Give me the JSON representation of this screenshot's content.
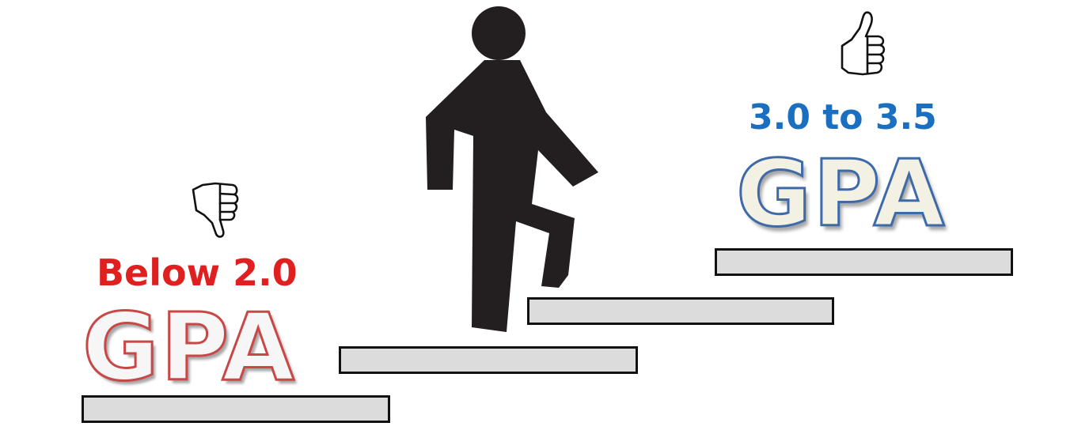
{
  "low": {
    "range_label": "Below 2.0",
    "gpa_label": "GPA",
    "color": "#e02020",
    "icon": "thumbs-down-icon"
  },
  "high": {
    "range_label": "3.0 to 3.5",
    "gpa_label": "GPA",
    "color": "#1a6fc0",
    "icon": "thumbs-up-icon"
  },
  "figure": {
    "icon": "walking-person-icon",
    "color": "#231f20"
  },
  "steps": {
    "count": 4,
    "fill": "#dcdcdc",
    "outline": "#111111"
  }
}
